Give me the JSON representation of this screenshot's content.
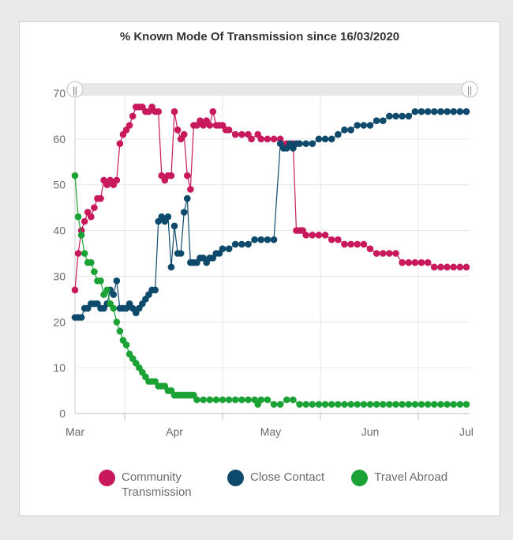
{
  "chart_data": {
    "type": "line",
    "title": "% Known Mode Of Transmission since 16/03/2020",
    "xlabel": "",
    "ylabel": "",
    "ylim": [
      0,
      70
    ],
    "yticks": [
      0,
      10,
      20,
      30,
      40,
      50,
      60,
      70
    ],
    "xlim": [
      0,
      123
    ],
    "xticks": [
      {
        "label": "Mar",
        "day": 0
      },
      {
        "label": "Apr",
        "day": 31
      },
      {
        "label": "May",
        "day": 61
      },
      {
        "label": "Jun",
        "day": 92
      },
      {
        "label": "Jul",
        "day": 122
      }
    ],
    "series": [
      {
        "name": "Community Transmission",
        "color": "#c8195c",
        "points": [
          [
            0,
            27
          ],
          [
            1,
            35
          ],
          [
            2,
            40
          ],
          [
            3,
            42
          ],
          [
            4,
            44
          ],
          [
            5,
            43
          ],
          [
            6,
            45
          ],
          [
            7,
            47
          ],
          [
            8,
            47
          ],
          [
            9,
            51
          ],
          [
            10,
            50
          ],
          [
            11,
            51
          ],
          [
            12,
            50
          ],
          [
            13,
            51
          ],
          [
            14,
            59
          ],
          [
            15,
            61
          ],
          [
            16,
            62
          ],
          [
            17,
            63
          ],
          [
            18,
            65
          ],
          [
            19,
            67
          ],
          [
            20,
            67
          ],
          [
            21,
            67
          ],
          [
            22,
            66
          ],
          [
            23,
            66
          ],
          [
            24,
            67
          ],
          [
            25,
            66
          ],
          [
            26,
            66
          ],
          [
            27,
            52
          ],
          [
            28,
            51
          ],
          [
            29,
            52
          ],
          [
            30,
            52
          ],
          [
            31,
            66
          ],
          [
            32,
            62
          ],
          [
            33,
            60
          ],
          [
            34,
            61
          ],
          [
            35,
            52
          ],
          [
            36,
            49
          ],
          [
            37,
            63
          ],
          [
            38,
            63
          ],
          [
            39,
            64
          ],
          [
            40,
            63
          ],
          [
            41,
            64
          ],
          [
            42,
            63
          ],
          [
            43,
            66
          ],
          [
            44,
            63
          ],
          [
            45,
            63
          ],
          [
            46,
            63
          ],
          [
            47,
            62
          ],
          [
            48,
            62
          ],
          [
            50,
            61
          ],
          [
            52,
            61
          ],
          [
            54,
            61
          ],
          [
            55,
            60
          ],
          [
            57,
            61
          ],
          [
            58,
            60
          ],
          [
            60,
            60
          ],
          [
            62,
            60
          ],
          [
            64,
            60
          ],
          [
            66,
            59
          ],
          [
            68,
            59
          ],
          [
            69,
            40
          ],
          [
            70,
            40
          ],
          [
            71,
            40
          ],
          [
            72,
            39
          ],
          [
            74,
            39
          ],
          [
            76,
            39
          ],
          [
            78,
            39
          ],
          [
            80,
            38
          ],
          [
            82,
            38
          ],
          [
            84,
            37
          ],
          [
            86,
            37
          ],
          [
            88,
            37
          ],
          [
            90,
            37
          ],
          [
            92,
            36
          ],
          [
            94,
            35
          ],
          [
            96,
            35
          ],
          [
            98,
            35
          ],
          [
            100,
            35
          ],
          [
            102,
            33
          ],
          [
            104,
            33
          ],
          [
            106,
            33
          ],
          [
            108,
            33
          ],
          [
            110,
            33
          ],
          [
            112,
            32
          ],
          [
            114,
            32
          ],
          [
            116,
            32
          ],
          [
            118,
            32
          ],
          [
            120,
            32
          ],
          [
            122,
            32
          ]
        ]
      },
      {
        "name": "Close Contact",
        "color": "#0e4a6b",
        "points": [
          [
            0,
            21
          ],
          [
            1,
            21
          ],
          [
            2,
            21
          ],
          [
            3,
            23
          ],
          [
            4,
            23
          ],
          [
            5,
            24
          ],
          [
            6,
            24
          ],
          [
            7,
            24
          ],
          [
            8,
            23
          ],
          [
            9,
            23
          ],
          [
            10,
            24
          ],
          [
            11,
            27
          ],
          [
            12,
            26
          ],
          [
            13,
            29
          ],
          [
            14,
            23
          ],
          [
            15,
            23
          ],
          [
            16,
            23
          ],
          [
            17,
            24
          ],
          [
            18,
            23
          ],
          [
            19,
            22
          ],
          [
            20,
            23
          ],
          [
            21,
            24
          ],
          [
            22,
            25
          ],
          [
            23,
            26
          ],
          [
            24,
            27
          ],
          [
            25,
            27
          ],
          [
            26,
            42
          ],
          [
            27,
            43
          ],
          [
            28,
            42
          ],
          [
            29,
            43
          ],
          [
            30,
            32
          ],
          [
            31,
            41
          ],
          [
            32,
            35
          ],
          [
            33,
            35
          ],
          [
            34,
            44
          ],
          [
            35,
            47
          ],
          [
            36,
            33
          ],
          [
            37,
            33
          ],
          [
            38,
            33
          ],
          [
            39,
            34
          ],
          [
            40,
            34
          ],
          [
            41,
            33
          ],
          [
            42,
            34
          ],
          [
            43,
            34
          ],
          [
            44,
            35
          ],
          [
            45,
            35
          ],
          [
            46,
            36
          ],
          [
            48,
            36
          ],
          [
            50,
            37
          ],
          [
            52,
            37
          ],
          [
            54,
            37
          ],
          [
            56,
            38
          ],
          [
            58,
            38
          ],
          [
            60,
            38
          ],
          [
            62,
            38
          ],
          [
            64,
            59
          ],
          [
            65,
            58
          ],
          [
            66,
            58
          ],
          [
            67,
            59
          ],
          [
            68,
            58
          ],
          [
            69,
            59
          ],
          [
            70,
            59
          ],
          [
            72,
            59
          ],
          [
            74,
            59
          ],
          [
            76,
            60
          ],
          [
            78,
            60
          ],
          [
            80,
            60
          ],
          [
            82,
            61
          ],
          [
            84,
            62
          ],
          [
            86,
            62
          ],
          [
            88,
            63
          ],
          [
            90,
            63
          ],
          [
            92,
            63
          ],
          [
            94,
            64
          ],
          [
            96,
            64
          ],
          [
            98,
            65
          ],
          [
            100,
            65
          ],
          [
            102,
            65
          ],
          [
            104,
            65
          ],
          [
            106,
            66
          ],
          [
            108,
            66
          ],
          [
            110,
            66
          ],
          [
            112,
            66
          ],
          [
            114,
            66
          ],
          [
            116,
            66
          ],
          [
            118,
            66
          ],
          [
            120,
            66
          ],
          [
            122,
            66
          ]
        ]
      },
      {
        "name": "Travel Abroad",
        "color": "#1aa235",
        "points": [
          [
            0,
            52
          ],
          [
            1,
            43
          ],
          [
            2,
            39
          ],
          [
            3,
            35
          ],
          [
            4,
            33
          ],
          [
            5,
            33
          ],
          [
            6,
            31
          ],
          [
            7,
            29
          ],
          [
            8,
            29
          ],
          [
            9,
            26
          ],
          [
            10,
            27
          ],
          [
            11,
            24
          ],
          [
            12,
            23
          ],
          [
            13,
            20
          ],
          [
            14,
            18
          ],
          [
            15,
            16
          ],
          [
            16,
            15
          ],
          [
            17,
            13
          ],
          [
            18,
            12
          ],
          [
            19,
            11
          ],
          [
            20,
            10
          ],
          [
            21,
            9
          ],
          [
            22,
            8
          ],
          [
            23,
            7
          ],
          [
            24,
            7
          ],
          [
            25,
            7
          ],
          [
            26,
            6
          ],
          [
            27,
            6
          ],
          [
            28,
            6
          ],
          [
            29,
            5
          ],
          [
            30,
            5
          ],
          [
            31,
            4
          ],
          [
            32,
            4
          ],
          [
            33,
            4
          ],
          [
            34,
            4
          ],
          [
            35,
            4
          ],
          [
            36,
            4
          ],
          [
            37,
            4
          ],
          [
            38,
            3
          ],
          [
            40,
            3
          ],
          [
            42,
            3
          ],
          [
            44,
            3
          ],
          [
            46,
            3
          ],
          [
            48,
            3
          ],
          [
            50,
            3
          ],
          [
            52,
            3
          ],
          [
            54,
            3
          ],
          [
            56,
            3
          ],
          [
            57,
            2
          ],
          [
            58,
            3
          ],
          [
            60,
            3
          ],
          [
            62,
            2
          ],
          [
            64,
            2
          ],
          [
            66,
            3
          ],
          [
            68,
            3
          ],
          [
            70,
            2
          ],
          [
            72,
            2
          ],
          [
            74,
            2
          ],
          [
            76,
            2
          ],
          [
            78,
            2
          ],
          [
            80,
            2
          ],
          [
            82,
            2
          ],
          [
            84,
            2
          ],
          [
            86,
            2
          ],
          [
            88,
            2
          ],
          [
            90,
            2
          ],
          [
            92,
            2
          ],
          [
            94,
            2
          ],
          [
            96,
            2
          ],
          [
            98,
            2
          ],
          [
            100,
            2
          ],
          [
            102,
            2
          ],
          [
            104,
            2
          ],
          [
            106,
            2
          ],
          [
            108,
            2
          ],
          [
            110,
            2
          ],
          [
            112,
            2
          ],
          [
            114,
            2
          ],
          [
            116,
            2
          ],
          [
            118,
            2
          ],
          [
            120,
            2
          ],
          [
            122,
            2
          ]
        ]
      }
    ],
    "legend": [
      {
        "name": "Community Transmission",
        "color": "#c8195c"
      },
      {
        "name": "Close Contact",
        "color": "#0e4a6b"
      },
      {
        "name": "Travel Abroad",
        "color": "#1aa235"
      }
    ],
    "legend_position": "bottom",
    "grid": true,
    "navigator_handle_glyph": "||"
  }
}
